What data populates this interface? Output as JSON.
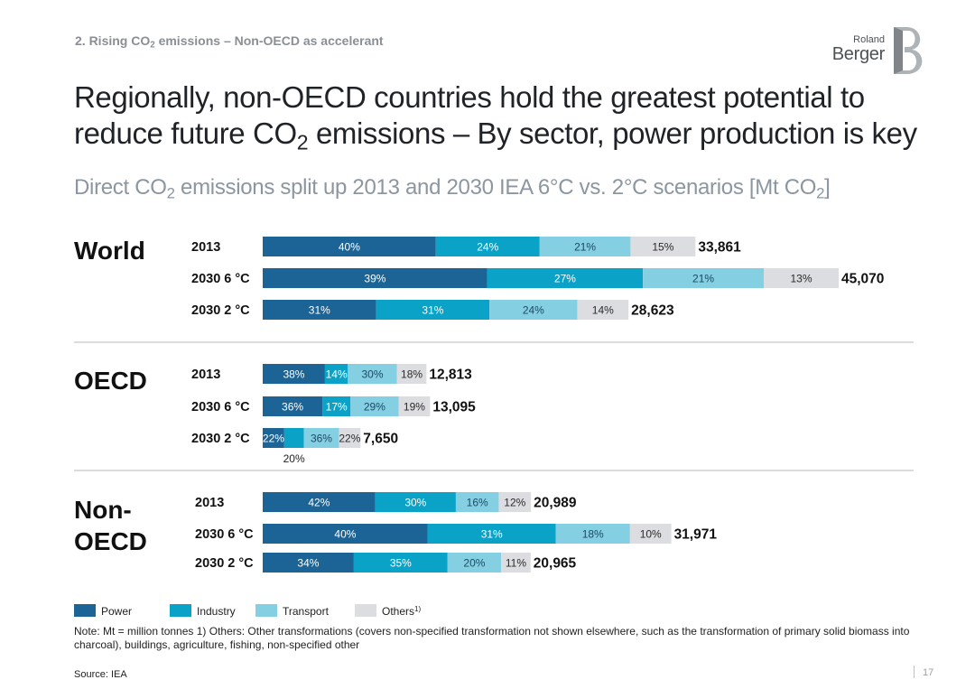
{
  "header": {
    "kicker_pre": "2. Rising CO",
    "kicker_sub": "2",
    "kicker_post": " emissions – Non-OECD as accelerant",
    "title_line1": "Regionally, non-OECD countries hold the greatest potential to",
    "title_line2_pre": "reduce future CO",
    "title_line2_sub": "2",
    "title_line2_post": " emissions – By sector, power production is key",
    "subtitle_pre": "Direct CO",
    "subtitle_sub1": "2",
    "subtitle_mid": " emissions split up 2013 and 2030 IEA 6°C vs. 2°C scenarios [Mt CO",
    "subtitle_sub2": "2",
    "subtitle_post": "]"
  },
  "logo": {
    "line1": "Roland",
    "line2": "Berger"
  },
  "colors": {
    "Power": "#1c6495",
    "Industry": "#0aa3c7",
    "Transport": "#85cfe3",
    "Others": "#dcdde0",
    "divider": "#b5b9bd"
  },
  "chart_data": {
    "type": "bar",
    "orientation": "horizontal",
    "stacked": true,
    "unit": "Mt CO2",
    "segments": [
      "Power",
      "Industry",
      "Transport",
      "Others"
    ],
    "legend": [
      {
        "name": "Power",
        "label": "Power"
      },
      {
        "name": "Industry",
        "label": "Industry"
      },
      {
        "name": "Transport",
        "label": "Transport"
      },
      {
        "name": "Others",
        "label": "Others",
        "footnote": "1)"
      }
    ],
    "groups": [
      {
        "region": "World",
        "rows": [
          {
            "year": "2013",
            "total": 33861,
            "total_label": "33,861",
            "shares": [
              40,
              24,
              21,
              15
            ],
            "labels": [
              "40%",
              "24%",
              "21%",
              "15%"
            ]
          },
          {
            "year": "2030 6 °C",
            "total": 45070,
            "total_label": "45,070",
            "shares": [
              39,
              27,
              21,
              13
            ],
            "labels": [
              "39%",
              "27%",
              "21%",
              "13%"
            ]
          },
          {
            "year": "2030 2 °C",
            "total": 28623,
            "total_label": "28,623",
            "shares": [
              31,
              31,
              24,
              14
            ],
            "labels": [
              "31%",
              "31%",
              "24%",
              "14%"
            ]
          }
        ]
      },
      {
        "region": "OECD",
        "rows": [
          {
            "year": "2013",
            "total": 12813,
            "total_label": "12,813",
            "shares": [
              38,
              14,
              30,
              18
            ],
            "labels": [
              "38%",
              "14%",
              "30%",
              "18%"
            ]
          },
          {
            "year": "2030 6 °C",
            "total": 13095,
            "total_label": "13,095",
            "shares": [
              36,
              17,
              29,
              19
            ],
            "labels": [
              "36%",
              "17%",
              "29%",
              "19%"
            ]
          },
          {
            "year": "2030 2 °C",
            "total": 7650,
            "total_label": "7,650",
            "shares": [
              22,
              20,
              36,
              22
            ],
            "labels": [
              "22%",
              "20%",
              "36%",
              "22%"
            ],
            "label_below": [
              false,
              true,
              false,
              false
            ]
          }
        ]
      },
      {
        "region_line1": "Non-",
        "region_line2": "OECD",
        "rows": [
          {
            "year": "2013",
            "total": 20989,
            "total_label": "20,989",
            "shares": [
              42,
              30,
              16,
              12
            ],
            "labels": [
              "42%",
              "30%",
              "16%",
              "12%"
            ]
          },
          {
            "year": "2030 6 °C",
            "total": 31971,
            "total_label": "31,971",
            "shares": [
              40,
              31,
              18,
              10
            ],
            "labels": [
              "40%",
              "31%",
              "18%",
              "10%"
            ]
          },
          {
            "year": "2030 2 °C",
            "total": 20965,
            "total_label": "20,965",
            "shares": [
              34,
              35,
              20,
              11
            ],
            "labels": [
              "34%",
              "35%",
              "20%",
              "11%"
            ]
          }
        ]
      }
    ]
  },
  "footer": {
    "note": "Note: Mt = million tonnes   1) Others: Other transformations (covers non-specified transformation not shown elsewhere, such as the transformation of primary solid biomass into charcoal), buildings, agriculture, fishing, non-specified other",
    "source": "Source: IEA",
    "page": "17"
  }
}
